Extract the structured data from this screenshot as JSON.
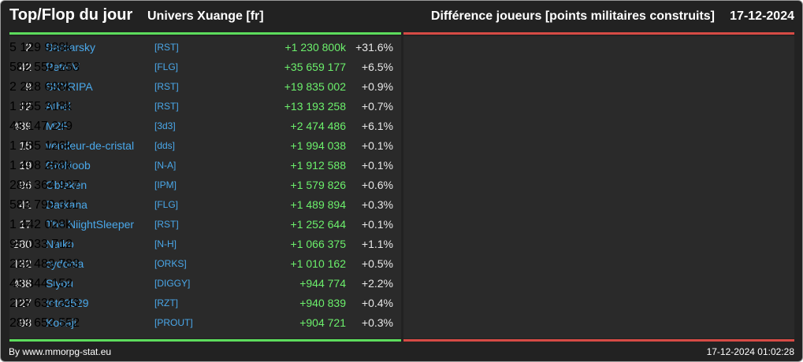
{
  "header": {
    "title": "Top/Flop du jour",
    "universe": "Univers Xuange [fr]",
    "subject": "Différence joueurs [points militaires construits]",
    "date": "17-12-2024"
  },
  "colors": {
    "top": "#5cdc5c",
    "flop": "#d64b45",
    "link": "#4aa8ea"
  },
  "top_rows": [
    {
      "rank": "2",
      "name": "Barbarsky",
      "alliance": "[RST]",
      "points": "5 129 938k",
      "diff": "+1 230 800k",
      "pct": "+31.6%"
    },
    {
      "rank": "42",
      "name": "PetroV",
      "alliance": "[FLG]",
      "points": "582 550 253",
      "diff": "+35 659 177",
      "pct": "+6.5%"
    },
    {
      "rank": "9",
      "name": "SKYRIPA",
      "alliance": "[RST]",
      "points": "2 228 698k",
      "diff": "+19 835 002",
      "pct": "+0.9%"
    },
    {
      "rank": "12",
      "name": "Athel",
      "alliance": "[RST]",
      "points": "1 855 318k",
      "diff": "+13 193 258",
      "pct": "+0.7%"
    },
    {
      "rank": "439",
      "name": "M2F",
      "alliance": "[3d3]",
      "points": "43 147 249",
      "diff": "+2 474 486",
      "pct": "+6.1%"
    },
    {
      "rank": "15",
      "name": "vendeur-de-cristal",
      "alliance": "[dds]",
      "points": "1 785 126k",
      "diff": "+1 994 038",
      "pct": "+0.1%"
    },
    {
      "rank": "19",
      "name": "GroNoob",
      "alliance": "[N-A]",
      "points": "1 408 268k",
      "diff": "+1 912 588",
      "pct": "+0.1%"
    },
    {
      "rank": "96",
      "name": "Oblaken",
      "alliance": "[IPM]",
      "points": "284 364 927",
      "diff": "+1 579 826",
      "pct": "+0.6%"
    },
    {
      "rank": "41",
      "name": "Darkana",
      "alliance": "[FLG]",
      "points": "583 799 311",
      "diff": "+1 489 894",
      "pct": "+0.3%"
    },
    {
      "rank": "17",
      "name": "The NiightSleeper",
      "alliance": "[RST]",
      "points": "1 442 028k",
      "diff": "+1 252 644",
      "pct": "+0.1%"
    },
    {
      "rank": "280",
      "name": "Naiko",
      "alliance": "[N-H]",
      "points": "95 033 712",
      "diff": "+1 066 375",
      "pct": "+1.1%"
    },
    {
      "rank": "132",
      "name": "cydonia",
      "alliance": "[ORKS]",
      "points": "220 483 783",
      "diff": "+1 010 162",
      "pct": "+0.5%"
    },
    {
      "rank": "438",
      "name": "Siyou",
      "alliance": "[DIGGY]",
      "points": "43 344 152",
      "diff": "+944 774",
      "pct": "+2.2%"
    },
    {
      "rank": "127",
      "name": "toto3529",
      "alliance": "[RZT]",
      "points": "228 633 343",
      "diff": "+940 839",
      "pct": "+0.4%"
    },
    {
      "rank": "98",
      "name": "Kobaji",
      "alliance": "[PROUT]",
      "points": "283 652 552",
      "diff": "+904 721",
      "pct": "+0.3%"
    }
  ],
  "footer": {
    "credit": "By www.mmorpg-stat.eu",
    "timestamp": "17-12-2024 01:02:28"
  }
}
